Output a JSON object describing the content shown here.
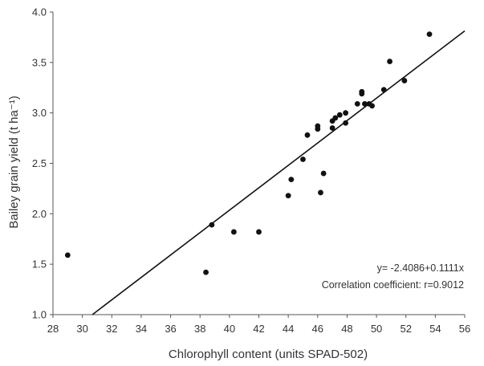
{
  "chart_data": {
    "type": "scatter",
    "xlabel": "Chlorophyll content (units SPAD-502)",
    "ylabel": "Bailey grain yield (t ha⁻¹)",
    "xlim": [
      28,
      56
    ],
    "ylim": [
      1.0,
      4.0
    ],
    "xticks": [
      28,
      30,
      32,
      34,
      36,
      38,
      40,
      42,
      44,
      46,
      48,
      50,
      52,
      54,
      56
    ],
    "yticks": [
      1.0,
      1.5,
      2.0,
      2.5,
      3.0,
      3.5,
      4.0
    ],
    "grid": false,
    "annotations": [
      "y= -2.4086+0.1111x",
      "Correlation coefficient: r=0.9012"
    ],
    "regression": {
      "intercept": -2.4086,
      "slope": 0.1111
    },
    "points": [
      {
        "x": 29.0,
        "y": 1.59
      },
      {
        "x": 38.4,
        "y": 1.42
      },
      {
        "x": 38.8,
        "y": 1.89
      },
      {
        "x": 40.3,
        "y": 1.82
      },
      {
        "x": 42.0,
        "y": 1.82
      },
      {
        "x": 44.0,
        "y": 2.18
      },
      {
        "x": 44.2,
        "y": 2.34
      },
      {
        "x": 45.0,
        "y": 2.54
      },
      {
        "x": 45.3,
        "y": 2.78
      },
      {
        "x": 46.0,
        "y": 2.87
      },
      {
        "x": 46.0,
        "y": 2.84
      },
      {
        "x": 46.2,
        "y": 2.21
      },
      {
        "x": 46.4,
        "y": 2.4
      },
      {
        "x": 47.0,
        "y": 2.92
      },
      {
        "x": 47.0,
        "y": 2.85
      },
      {
        "x": 47.2,
        "y": 2.95
      },
      {
        "x": 47.5,
        "y": 2.98
      },
      {
        "x": 47.9,
        "y": 2.9
      },
      {
        "x": 47.9,
        "y": 3.0
      },
      {
        "x": 48.7,
        "y": 3.09
      },
      {
        "x": 49.0,
        "y": 3.19
      },
      {
        "x": 49.0,
        "y": 3.21
      },
      {
        "x": 49.2,
        "y": 3.09
      },
      {
        "x": 49.5,
        "y": 3.09
      },
      {
        "x": 49.7,
        "y": 3.07
      },
      {
        "x": 50.5,
        "y": 3.23
      },
      {
        "x": 50.9,
        "y": 3.51
      },
      {
        "x": 51.9,
        "y": 3.32
      },
      {
        "x": 53.6,
        "y": 3.78
      }
    ]
  }
}
